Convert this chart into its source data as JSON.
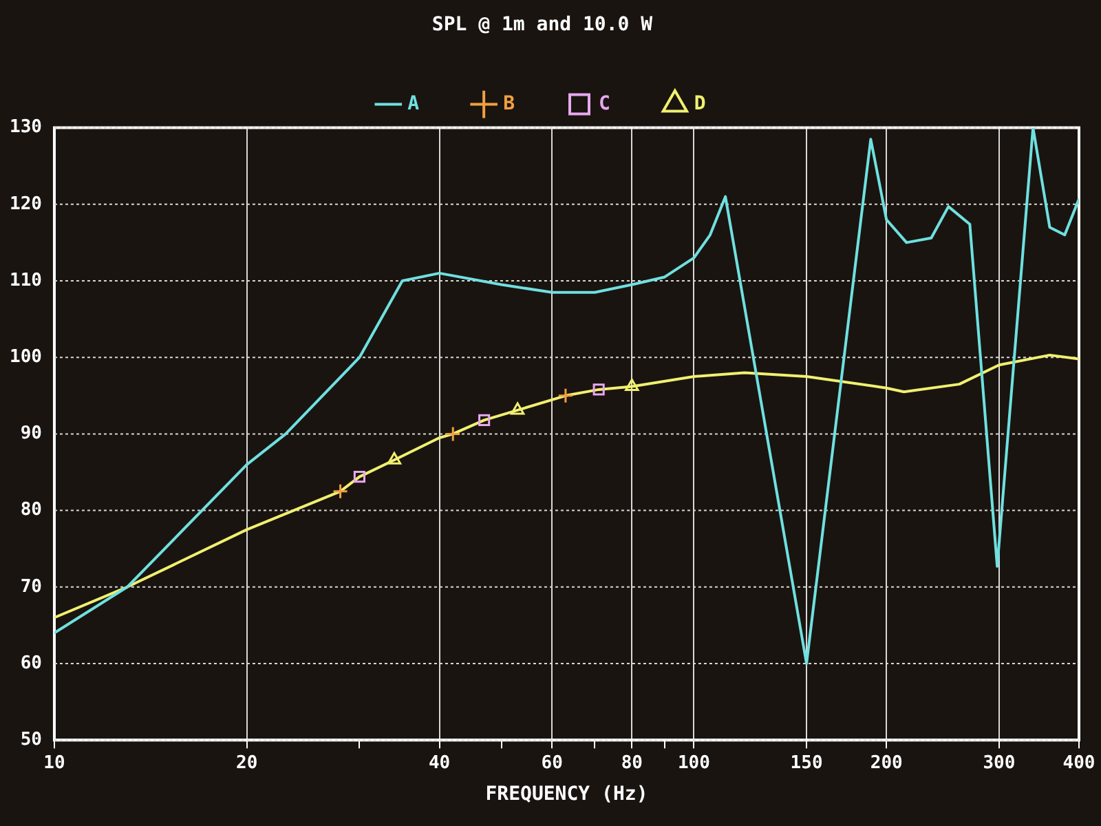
{
  "chart_data": {
    "type": "line",
    "title": "SPL @ 1m and 10.0 W",
    "xlabel": "FREQUENCY (Hz)",
    "xlim": [
      10,
      400
    ],
    "xticks": [
      10,
      20,
      {
        "value": 30,
        "label": null
      },
      40,
      {
        "value": 50,
        "label": null
      },
      60,
      {
        "value": 70,
        "label": null
      },
      80,
      {
        "value": 90,
        "label": null
      },
      100,
      150,
      200,
      300,
      400
    ],
    "ylim": [
      50,
      130
    ],
    "yticks": [
      50,
      60,
      70,
      80,
      90,
      100,
      110,
      120,
      130
    ],
    "log": "x",
    "grid": true,
    "legend": "top",
    "series": [
      {
        "name": "A",
        "marker": "none",
        "color": "#6fe0e0",
        "x": [
          10,
          13,
          20,
          23,
          30,
          35,
          40,
          50,
          60,
          70,
          80,
          90,
          100,
          106,
          112,
          150,
          189,
          200,
          215,
          235,
          250,
          270,
          298,
          339,
          360,
          380,
          400
        ],
        "values": [
          64,
          70,
          86,
          90,
          100,
          110,
          111,
          109.5,
          108.5,
          108.5,
          109.5,
          110.5,
          113,
          116,
          121,
          60,
          128.5,
          118,
          115,
          115.6,
          119.7,
          117.4,
          72.7,
          130,
          117,
          116,
          120.7
        ]
      },
      {
        "name": "B",
        "type": "scatter",
        "marker": "cross",
        "color": "#f0a040",
        "x": [
          28,
          42,
          63
        ],
        "values": [
          82.5,
          90,
          95
        ]
      },
      {
        "name": "C",
        "type": "scatter",
        "marker": "square",
        "color": "#e8a8f0",
        "x": [
          30,
          47,
          71
        ],
        "values": [
          84.4,
          91.8,
          95.8
        ]
      },
      {
        "marker": "none",
        "color": "#f0f070",
        "x": [
          10,
          13,
          20,
          28,
          30,
          34,
          40,
          42,
          47,
          53,
          63,
          71,
          80,
          100,
          120,
          150,
          200,
          213,
          260,
          300,
          360,
          400
        ],
        "values": [
          66,
          70,
          77.5,
          82.5,
          84.4,
          86.6,
          89.5,
          90,
          91.8,
          93.1,
          95,
          95.8,
          96.2,
          97.5,
          98,
          97.5,
          96,
          95.5,
          96.5,
          99,
          100.3,
          99.8
        ]
      },
      {
        "name": "D",
        "type": "scatter",
        "marker": "triangle",
        "color": "#f0f070",
        "x": [
          34,
          53,
          80
        ],
        "values": [
          86.6,
          93.1,
          96.2
        ]
      }
    ]
  }
}
